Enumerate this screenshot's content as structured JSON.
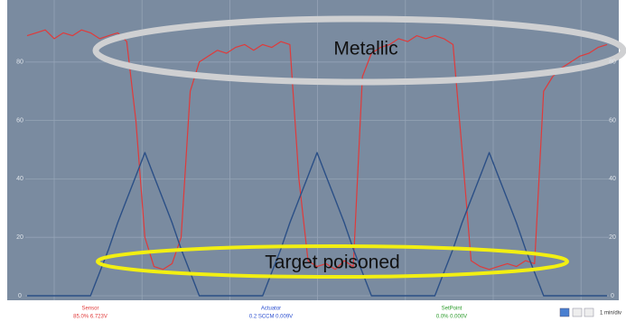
{
  "chart_data": {
    "type": "line",
    "x": [
      0,
      1,
      2,
      3,
      4,
      5,
      6,
      7,
      8,
      9,
      10,
      11,
      12,
      13,
      14,
      15,
      16,
      17,
      18,
      19,
      20,
      21,
      22,
      23,
      24,
      25,
      26,
      27,
      28,
      29,
      30,
      31,
      32,
      33,
      34,
      35,
      36,
      37,
      38,
      39,
      40,
      41,
      42,
      43,
      44,
      45,
      46,
      47,
      48,
      49,
      50,
      51,
      52,
      53,
      54,
      55,
      56,
      57,
      58,
      59,
      60,
      61,
      62,
      63,
      64
    ],
    "xlim": [
      0,
      64
    ],
    "ylim": [
      0,
      100
    ],
    "yticks": [
      0,
      20,
      40,
      60,
      80
    ],
    "grid": true,
    "series": [
      {
        "name": "Sensor",
        "color": "#e03a3a",
        "readout": "85.0%  6.723V",
        "values": [
          89,
          90,
          91,
          88,
          90,
          89,
          91,
          90,
          88,
          89,
          90,
          87,
          60,
          20,
          10,
          9,
          11,
          20,
          70,
          80,
          82,
          84,
          83,
          85,
          86,
          84,
          86,
          85,
          87,
          86,
          40,
          12,
          10,
          11,
          9,
          12,
          10,
          75,
          83,
          85,
          86,
          88,
          87,
          89,
          88,
          89,
          88,
          86,
          50,
          12,
          10,
          9,
          10,
          11,
          10,
          12,
          11,
          70,
          75,
          78,
          80,
          82,
          83,
          85,
          86
        ]
      },
      {
        "name": "Actuator",
        "color": "#2b4f86",
        "readout": "0.2 SCCM  0.009V",
        "values": [
          0,
          0,
          0,
          0,
          0,
          0,
          0,
          0,
          8,
          16,
          25,
          33,
          41,
          49,
          41,
          33,
          25,
          16,
          8,
          0,
          0,
          0,
          0,
          0,
          0,
          0,
          0,
          8,
          16,
          25,
          33,
          41,
          49,
          41,
          33,
          25,
          16,
          8,
          0,
          0,
          0,
          0,
          0,
          0,
          0,
          0,
          8,
          16,
          25,
          33,
          41,
          49,
          41,
          33,
          25,
          16,
          8,
          0,
          0,
          0,
          0,
          0,
          0,
          0,
          0
        ]
      }
    ],
    "setpoint": {
      "name": "SetPoint",
      "color": "#2a9a2a",
      "readout": "0.0%  0.000V"
    },
    "annotations": [
      "Metallic",
      "Target poisoned"
    ],
    "time_scale": "1 min/div"
  }
}
